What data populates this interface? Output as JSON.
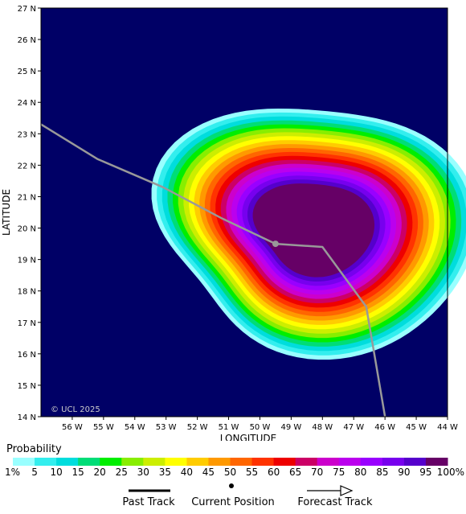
{
  "map": {
    "axis_titles": {
      "x": "LONGITUDE",
      "y": "LATITUDE"
    },
    "x_ticks": [
      "56 W",
      "55 W",
      "54 W",
      "53 W",
      "52 W",
      "51 W",
      "50 W",
      "49 W",
      "48 W",
      "47 W",
      "46 W",
      "45 W",
      "44 W"
    ],
    "x_tick_values": [
      -56,
      -55,
      -54,
      -53,
      -52,
      -51,
      -50,
      -49,
      -48,
      -47,
      -46,
      -45,
      -44
    ],
    "y_ticks": [
      "27 N",
      "26 N",
      "25 N",
      "24 N",
      "23 N",
      "22 N",
      "21 N",
      "20 N",
      "19 N",
      "18 N",
      "17 N",
      "16 N",
      "15 N",
      "14 N"
    ],
    "y_tick_values": [
      27,
      26,
      25,
      24,
      23,
      22,
      21,
      20,
      19,
      18,
      17,
      16,
      15,
      14
    ],
    "extent": {
      "lon_min": -57,
      "lon_max": -44,
      "lat_min": 14,
      "lat_max": 27
    },
    "background_color": "#000066",
    "copyright": "© UCL 2025",
    "past_track": [
      [
        -57.0,
        23.3
      ],
      [
        -55.2,
        22.2
      ],
      [
        -53.1,
        21.3
      ],
      [
        -51.2,
        20.3
      ],
      [
        -49.5,
        19.5
      ],
      [
        -48.0,
        19.4
      ],
      [
        -46.6,
        17.5
      ],
      [
        -46.0,
        14.0
      ]
    ],
    "current_position": [
      -49.5,
      19.5
    ],
    "track_color": "#999999",
    "probability_center": [
      -48.3,
      20.0
    ],
    "probability_radius_deg": 5.4
  },
  "legend": {
    "title": "Probability",
    "labels": [
      "1%",
      "5",
      "10",
      "15",
      "20",
      "25",
      "30",
      "35",
      "40",
      "45",
      "50",
      "55",
      "60",
      "65",
      "70",
      "75",
      "80",
      "85",
      "90",
      "95",
      "100%"
    ],
    "colors": [
      "#99ffff",
      "#33eeee",
      "#00dddd",
      "#00dd77",
      "#00ee00",
      "#88ee00",
      "#ccee00",
      "#ffff00",
      "#ffcc00",
      "#ff9900",
      "#ff6600",
      "#ff3300",
      "#ee0000",
      "#cc0066",
      "#cc00cc",
      "#bb00ee",
      "#9900ff",
      "#7700ee",
      "#5500cc",
      "#660066"
    ]
  },
  "track_legend": {
    "past": "Past Track",
    "current": "Current Position",
    "forecast": "Forecast Track"
  }
}
